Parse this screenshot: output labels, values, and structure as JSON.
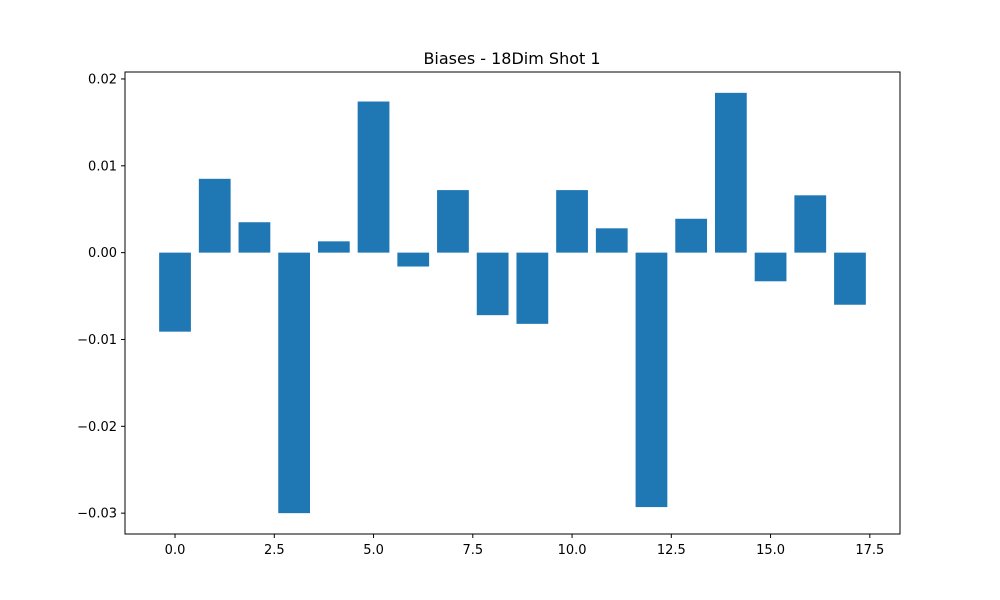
{
  "chart_data": {
    "type": "bar",
    "title": "Biases - 18Dim Shot 1",
    "xlabel": "",
    "ylabel": "",
    "x": [
      0,
      1,
      2,
      3,
      4,
      5,
      6,
      7,
      8,
      9,
      10,
      11,
      12,
      13,
      14,
      15,
      16,
      17
    ],
    "values": [
      -0.0091,
      0.0085,
      0.0035,
      -0.03,
      0.0013,
      0.0174,
      -0.0016,
      0.0072,
      -0.0072,
      -0.0082,
      0.0072,
      0.0028,
      -0.0293,
      0.0039,
      0.0184,
      -0.0033,
      0.0066,
      -0.006
    ],
    "xlim": [
      -1.26,
      18.26
    ],
    "ylim": [
      -0.0324,
      0.0208
    ],
    "xticks": [
      0.0,
      2.5,
      5.0,
      7.5,
      10.0,
      12.5,
      15.0,
      17.5
    ],
    "xtick_labels": [
      "0.0",
      "2.5",
      "5.0",
      "7.5",
      "10.0",
      "12.5",
      "15.0",
      "17.5"
    ],
    "yticks": [
      0.02,
      0.01,
      0.0,
      -0.01,
      -0.02,
      -0.03
    ],
    "ytick_labels": [
      "0.02",
      "0.01",
      "0.00",
      "−0.01",
      "−0.02",
      "−0.03"
    ],
    "bar_color": "#1f77b4",
    "grid": false,
    "legend": "none"
  }
}
